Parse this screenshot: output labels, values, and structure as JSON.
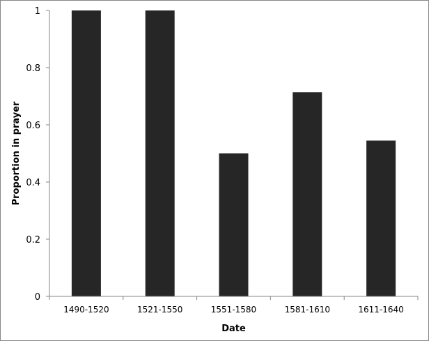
{
  "chart_data": {
    "type": "bar",
    "categories": [
      "1490-1520",
      "1521-1550",
      "1551-1580",
      "1581-1610",
      "1611-1640"
    ],
    "values": [
      1,
      1,
      0.5,
      0.714,
      0.545
    ],
    "title": "",
    "xlabel": "Date",
    "ylabel": "Proportion in prayer",
    "ylim": [
      0,
      1
    ],
    "yticks": [
      "0",
      "0.2",
      "0.4",
      "0.6",
      "0.8",
      "1"
    ],
    "grid": false,
    "legend": "none",
    "bar_color": "#262626",
    "axis_color": "#868686"
  }
}
